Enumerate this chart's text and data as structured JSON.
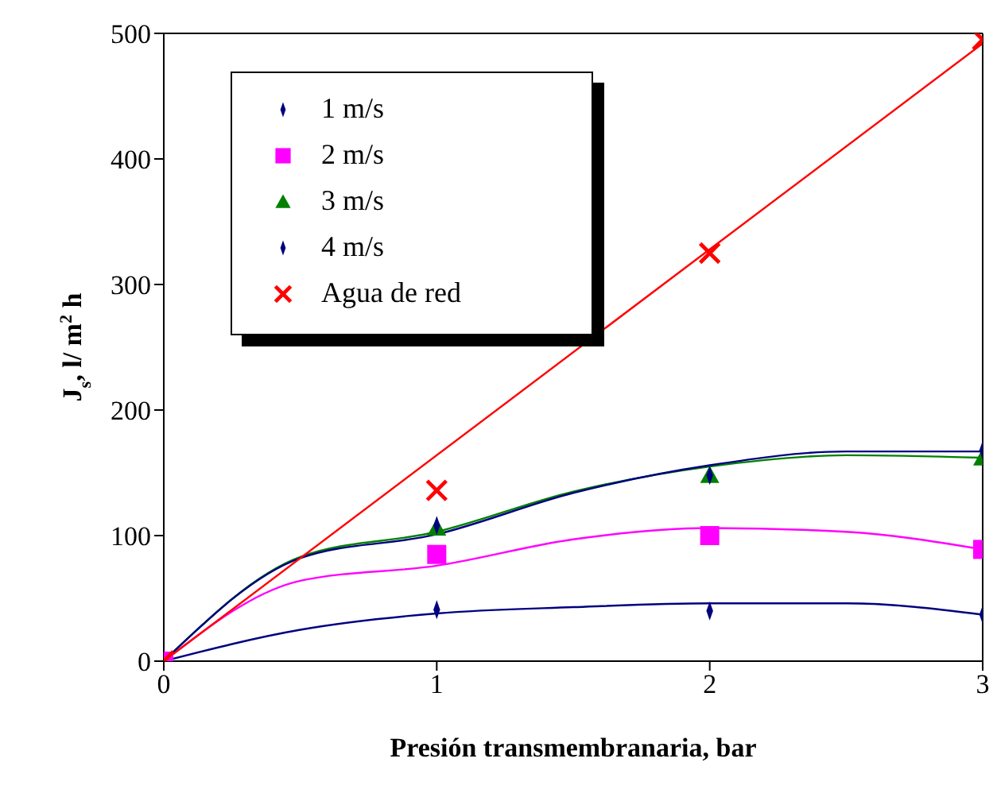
{
  "chart_data": {
    "type": "scatter",
    "xlabel": "Presión transmembranaria, bar",
    "ylabel": "J$_{s}$, l/ m$^{2}$ h",
    "x": [
      0,
      1,
      2,
      3
    ],
    "xlim": [
      0,
      3
    ],
    "xticks": [
      0,
      1,
      2,
      3
    ],
    "ylim": [
      0,
      500
    ],
    "yticks": [
      0,
      100,
      200,
      300,
      400,
      500
    ],
    "legend": "top left",
    "series": [
      {
        "name": "1 m/s",
        "marker": "diamond",
        "color": "#000080",
        "values": [
          null,
          41,
          40,
          37
        ]
      },
      {
        "name": "2 m/s",
        "marker": "square",
        "color": "#ff00ff",
        "values": [
          0,
          85,
          100,
          89
        ]
      },
      {
        "name": "3 m/s",
        "marker": "triangle",
        "color": "#008000",
        "values": [
          null,
          106,
          148,
          162
        ]
      },
      {
        "name": "4 m/s",
        "marker": "diamond",
        "color": "#000080",
        "values": [
          null,
          108,
          148,
          168
        ]
      },
      {
        "name": "Agua de red",
        "marker": "cross",
        "color": "#ff0000",
        "values": [
          0,
          136,
          325,
          495
        ]
      },
      {
        "type": "line",
        "color": "#000080",
        "x": [
          0,
          0.5,
          1,
          1.5,
          2,
          2.5,
          3
        ],
        "values": [
          0,
          25,
          38,
          43,
          46,
          46,
          37
        ]
      },
      {
        "type": "line",
        "color": "#ff00ff",
        "x": [
          0,
          0.5,
          1,
          1.5,
          2,
          2.5,
          3
        ],
        "values": [
          0,
          64,
          76,
          97,
          106,
          103,
          89
        ]
      },
      {
        "type": "line",
        "color": "#008000",
        "x": [
          0,
          0.5,
          1,
          1.5,
          2,
          2.5,
          3
        ],
        "values": [
          0,
          83,
          103,
          135,
          155,
          164,
          162
        ]
      },
      {
        "type": "line",
        "color": "#000080",
        "x": [
          0,
          0.5,
          1,
          1.5,
          2,
          2.5,
          3
        ],
        "values": [
          0,
          82,
          101,
          134,
          156,
          167,
          167
        ]
      },
      {
        "type": "line",
        "color": "#ff0000",
        "x": [
          0,
          3
        ],
        "values": [
          0,
          492
        ]
      }
    ]
  }
}
